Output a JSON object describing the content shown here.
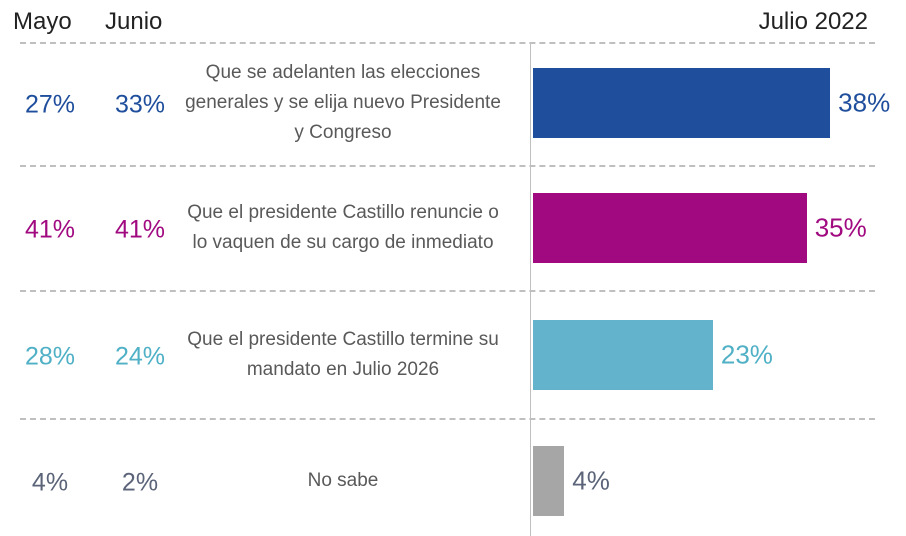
{
  "chart_data": {
    "type": "bar",
    "categories": [
      "Que se adelanten las elecciones generales y se elija nuevo Presidente y Congreso",
      "Que el presidente Castillo renuncie o lo vaquen de su cargo de inmediato",
      "Que el presidente Castillo termine su mandato en Julio 2026",
      "No sabe"
    ],
    "series": [
      {
        "name": "Mayo",
        "values": [
          27,
          41,
          28,
          4
        ],
        "value_labels": [
          "27%",
          "41%",
          "28%",
          "4%"
        ]
      },
      {
        "name": "Junio",
        "values": [
          33,
          41,
          24,
          2
        ],
        "value_labels": [
          "33%",
          "41%",
          "24%",
          "2%"
        ]
      },
      {
        "name": "Julio 2022",
        "values": [
          38,
          35,
          23,
          4
        ],
        "value_labels": [
          "38%",
          "35%",
          "23%",
          "4%"
        ]
      }
    ],
    "colors": [
      "#1f4e9c",
      "#a0097f",
      "#62b3cb",
      "#a6a6a6"
    ],
    "label_colors": [
      "#1f4e9c",
      "#a0097f",
      "#4fb0c6",
      "#5b6478"
    ]
  }
}
